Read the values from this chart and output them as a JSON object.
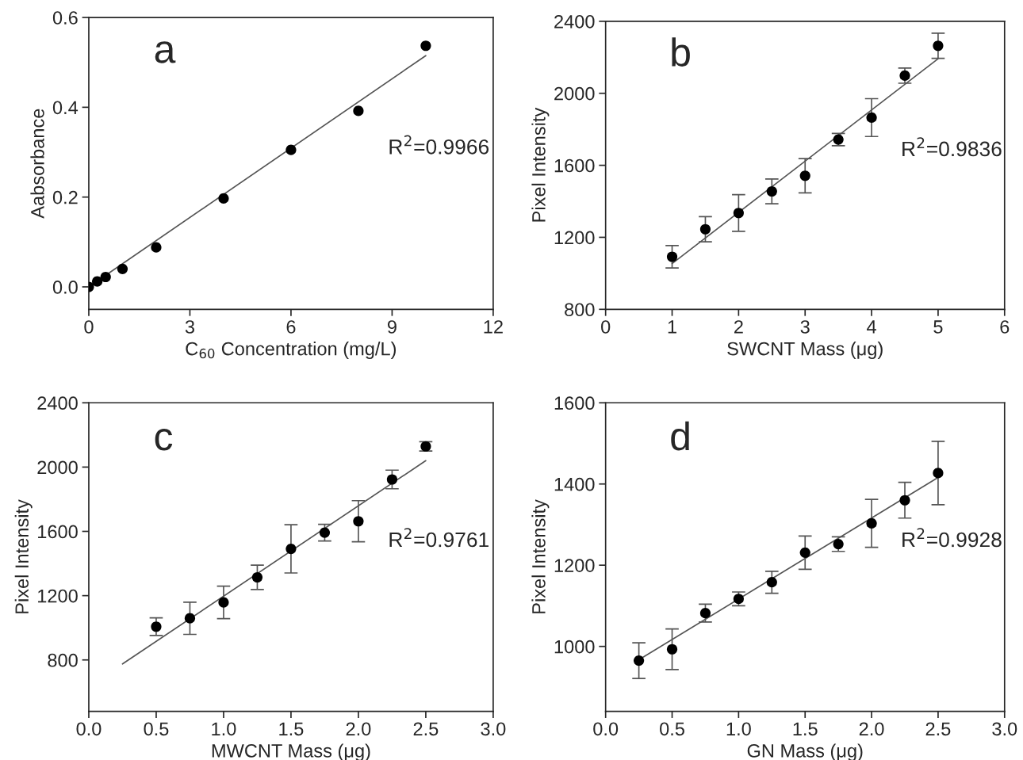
{
  "chart_data": [
    {
      "type": "scatter",
      "xlabel": "C$_{60}$ Concentration (mg/L)",
      "ylabel": "Aabsorbance",
      "annotations": [
        "a",
        "R$^{2}$=0.9966"
      ],
      "xlim": [
        0,
        12
      ],
      "ylim": [
        -0.05,
        0.6
      ],
      "xticks": [
        0,
        3,
        6,
        9,
        12
      ],
      "yticks": [
        {
          "value": 0,
          "label": "0.0"
        },
        {
          "value": 0.2,
          "label": "0.2"
        },
        {
          "value": 0.4,
          "label": "0.4"
        },
        {
          "value": 0.6,
          "label": "0.6"
        }
      ],
      "grid": false,
      "legend": false,
      "series": [
        {
          "marker": "circle",
          "color": "#000000",
          "x": [
            0,
            0.25,
            0.5,
            1,
            2,
            4,
            6,
            8,
            10
          ],
          "values": [
            0,
            0.012,
            0.022,
            0.04,
            0.088,
            0.197,
            0.305,
            0.392,
            0.537
          ]
        },
        {
          "type": "line",
          "color": "#555555",
          "x": [
            0,
            10
          ],
          "values": [
            0.0,
            0.515
          ]
        }
      ]
    },
    {
      "type": "scatter",
      "xlabel": "SWCNT Mass (μg)",
      "ylabel": "Pixel Intensity",
      "annotations": [
        "b",
        "R$^{2}$=0.9836"
      ],
      "xlim": [
        0,
        6
      ],
      "ylim": [
        800,
        2400
      ],
      "xticks": [
        0,
        1,
        2,
        3,
        4,
        5,
        6
      ],
      "yticks": [
        800,
        1200,
        1600,
        2000,
        2400
      ],
      "grid": false,
      "legend": false,
      "series": [
        {
          "marker": "circle",
          "color": "#000000",
          "x": [
            1,
            1.5,
            2,
            2.5,
            3,
            3.5,
            4,
            4.5,
            5
          ],
          "values": [
            1092,
            1245,
            1335,
            1455,
            1542,
            1743,
            1865,
            2098,
            2264
          ],
          "errors": [
            62,
            70,
            102,
            69,
            95,
            34,
            105,
            42,
            70
          ]
        },
        {
          "type": "line",
          "color": "#555555",
          "x": [
            1,
            5
          ],
          "values": [
            1054,
            2192
          ]
        }
      ]
    },
    {
      "type": "scatter",
      "xlabel": "MWCNT Mass (μg)",
      "ylabel": "Pixel Intensity",
      "annotations": [
        "c",
        "R$^{2}$=0.9761"
      ],
      "xlim": [
        0,
        3
      ],
      "ylim": [
        480,
        2400
      ],
      "xticks": [
        {
          "value": 0,
          "label": "0.0"
        },
        {
          "value": 0.5,
          "label": "0.5"
        },
        {
          "value": 1,
          "label": "1.0"
        },
        {
          "value": 1.5,
          "label": "1.5"
        },
        {
          "value": 2,
          "label": "2.0"
        },
        {
          "value": 2.5,
          "label": "2.5"
        },
        {
          "value": 3,
          "label": "3.0"
        }
      ],
      "yticks": [
        800,
        1200,
        1600,
        2000,
        2400
      ],
      "grid": false,
      "legend": false,
      "series": [
        {
          "marker": "circle",
          "color": "#000000",
          "x": [
            0.5,
            0.75,
            1,
            1.25,
            1.5,
            1.75,
            2,
            2.25,
            2.5
          ],
          "values": [
            1007,
            1059,
            1158,
            1314,
            1491,
            1592,
            1663,
            1923,
            2129
          ],
          "errors": [
            55,
            100,
            101,
            76,
            150,
            52,
            128,
            58,
            29
          ]
        },
        {
          "type": "line",
          "color": "#555555",
          "x": [
            0.25,
            2.5
          ],
          "values": [
            775,
            2040
          ]
        }
      ]
    },
    {
      "type": "scatter",
      "xlabel": "GN Mass (μg)",
      "ylabel": "Pixel Intensity",
      "annotations": [
        "d",
        "R$^{2}$=0.9928"
      ],
      "xlim": [
        0,
        3
      ],
      "ylim": [
        840,
        1600
      ],
      "xticks": [
        {
          "value": 0,
          "label": "0.0"
        },
        {
          "value": 0.5,
          "label": "0.5"
        },
        {
          "value": 1,
          "label": "1.0"
        },
        {
          "value": 1.5,
          "label": "1.5"
        },
        {
          "value": 2,
          "label": "2.0"
        },
        {
          "value": 2.5,
          "label": "2.5"
        },
        {
          "value": 3,
          "label": "3.0"
        }
      ],
      "yticks": [
        1000,
        1200,
        1400,
        1600
      ],
      "grid": false,
      "legend": false,
      "series": [
        {
          "marker": "circle",
          "color": "#000000",
          "x": [
            0.25,
            0.5,
            0.75,
            1,
            1.25,
            1.5,
            1.75,
            2,
            2.25,
            2.5
          ],
          "values": [
            965,
            993,
            1082,
            1117,
            1158,
            1231,
            1252,
            1303,
            1360,
            1427
          ],
          "errors": [
            44,
            50,
            22,
            17,
            27,
            41,
            18,
            59,
            44,
            78
          ]
        },
        {
          "type": "line",
          "color": "#555555",
          "x": [
            0.25,
            2.5
          ],
          "values": [
            967,
            1416
          ]
        }
      ]
    }
  ]
}
